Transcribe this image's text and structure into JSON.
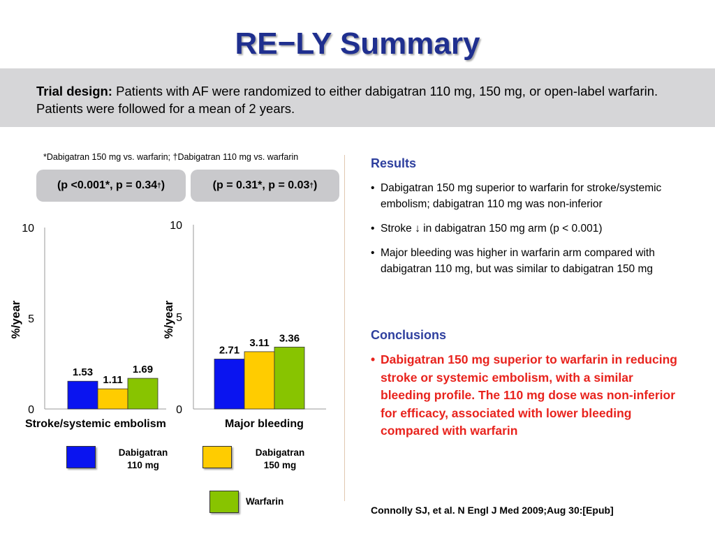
{
  "title": "RE−LY Summary",
  "trial_design": {
    "label": "Trial design:",
    "text": " Patients with AF were randomized to either dabigatran 110 mg, 150 mg, or open-label warfarin. Patients were followed for a mean of 2 years."
  },
  "footnote": "*Dabigatran 150 mg vs. warfarin; †Dabigatran 110 mg vs. warfarin",
  "pvalues": {
    "left_main": "(p <0.001*, p = 0.34",
    "right_main": "(p = 0.31*, p = 0.03",
    "dagger": "†",
    "close": ")"
  },
  "chart_data": [
    {
      "type": "bar",
      "categories": [
        "Stroke/systemic embolism"
      ],
      "ylabel": "%/year",
      "ylim": [
        0,
        10
      ],
      "yticks": [
        "0",
        "5",
        "10"
      ],
      "series": [
        {
          "name": "Dabigatran 110 mg",
          "values": [
            1.53
          ],
          "label": "1.53"
        },
        {
          "name": "Dabigatran 150 mg",
          "values": [
            1.11
          ],
          "label": "1.11"
        },
        {
          "name": "Warfarin",
          "values": [
            1.69
          ],
          "label": "1.69"
        }
      ]
    },
    {
      "type": "bar",
      "categories": [
        "Major bleeding"
      ],
      "ylabel": "%/year",
      "ylim": [
        0,
        10
      ],
      "yticks": [
        "0",
        "5",
        "10"
      ],
      "series": [
        {
          "name": "Dabigatran 110 mg",
          "values": [
            2.71
          ],
          "label": "2.71"
        },
        {
          "name": "Dabigatran 150 mg",
          "values": [
            3.11
          ],
          "label": "3.11"
        },
        {
          "name": "Warfarin",
          "values": [
            3.36
          ],
          "label": "3.36"
        }
      ]
    }
  ],
  "colors": {
    "dabigatran_110": "#0a14f0",
    "dabigatran_150": "#ffcc00",
    "warfarin": "#88c400"
  },
  "legend": {
    "d110": {
      "line1": "Dabigatran",
      "line2": "110 mg"
    },
    "d150": {
      "line1": "Dabigatran",
      "line2": "150 mg"
    },
    "warfarin": "Warfarin"
  },
  "results": {
    "heading": "Results",
    "bullets": [
      "Dabigatran 150 mg superior to warfarin for stroke/systemic embolism; dabigatran 110 mg was non-inferior",
      "Stroke ↓ in dabigatran 150 mg arm (p < 0.001)",
      "Major bleeding was higher in warfarin arm compared with dabigatran 110 mg, but was similar to dabigatran 150 mg"
    ]
  },
  "conclusions": {
    "heading": "Conclusions",
    "bullet": "Dabigatran 150 mg superior to warfarin in reducing stroke or systemic embolism, with a similar bleeding profile. The 110 mg dose was non-inferior for efficacy, associated with lower bleeding compared with warfarin"
  },
  "citation": "Connolly SJ, et al. N Engl J Med 2009;Aug 30:[Epub]"
}
